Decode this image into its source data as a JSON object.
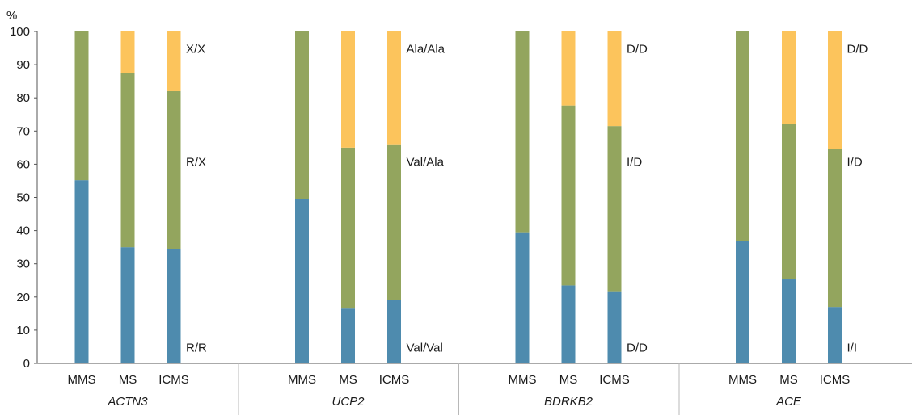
{
  "chart_data": {
    "type": "bar",
    "stacked": true,
    "ylabel": "%",
    "ylim": [
      0,
      100
    ],
    "yticks": [
      0,
      10,
      20,
      30,
      40,
      50,
      60,
      70,
      80,
      90,
      100
    ],
    "grid": false,
    "colors": {
      "bottom": "#4e8bae",
      "middle": "#93a55e",
      "top": "#fcc45c",
      "axis": "#555555",
      "separator": "#b8b8b8"
    },
    "groups": [
      {
        "name": "ACTN3",
        "categories": [
          "MMS",
          "MS",
          "ICMS"
        ],
        "series": [
          {
            "name": "R/R",
            "values": [
              55.2,
              35.0,
              34.5
            ]
          },
          {
            "name": "R/X",
            "values": [
              44.8,
              52.5,
              47.5
            ]
          },
          {
            "name": "X/X",
            "values": [
              0.0,
              12.5,
              18.0
            ]
          }
        ],
        "segment_labels": [
          {
            "text": "R/R",
            "y": 5
          },
          {
            "text": "R/X",
            "y": 61
          },
          {
            "text": "X/X",
            "y": 95
          }
        ]
      },
      {
        "name": "UCP2",
        "categories": [
          "MMS",
          "MS",
          "ICMS"
        ],
        "series": [
          {
            "name": "Val/Val",
            "values": [
              49.5,
              16.5,
              19.0
            ]
          },
          {
            "name": "Val/Ala",
            "values": [
              50.5,
              48.5,
              47.0
            ]
          },
          {
            "name": "Ala/Ala",
            "values": [
              0.0,
              35.0,
              34.0
            ]
          }
        ],
        "segment_labels": [
          {
            "text": "Val/Val",
            "y": 5
          },
          {
            "text": "Val/Ala",
            "y": 61
          },
          {
            "text": "Ala/Ala",
            "y": 95
          }
        ]
      },
      {
        "name": "BDRKB2",
        "categories": [
          "MMS",
          "MS",
          "ICMS"
        ],
        "series": [
          {
            "name": "D/D",
            "values": [
              39.5,
              23.5,
              21.5
            ]
          },
          {
            "name": "I/D",
            "values": [
              60.5,
              54.2,
              50.0
            ]
          },
          {
            "name": "D/D",
            "values": [
              0.0,
              22.3,
              28.5
            ]
          }
        ],
        "segment_labels": [
          {
            "text": "D/D",
            "y": 5
          },
          {
            "text": "I/D",
            "y": 61
          },
          {
            "text": "D/D",
            "y": 95
          }
        ]
      },
      {
        "name": "ACE",
        "categories": [
          "MMS",
          "MS",
          "ICMS"
        ],
        "series": [
          {
            "name": "I/I",
            "values": [
              36.8,
              25.3,
              17.0
            ]
          },
          {
            "name": "I/D",
            "values": [
              63.2,
              46.9,
              47.6
            ]
          },
          {
            "name": "D/D",
            "values": [
              0.0,
              27.8,
              35.4
            ]
          }
        ],
        "segment_labels": [
          {
            "text": "I/I",
            "y": 5
          },
          {
            "text": "I/D",
            "y": 61
          },
          {
            "text": "D/D",
            "y": 95
          }
        ]
      }
    ]
  }
}
